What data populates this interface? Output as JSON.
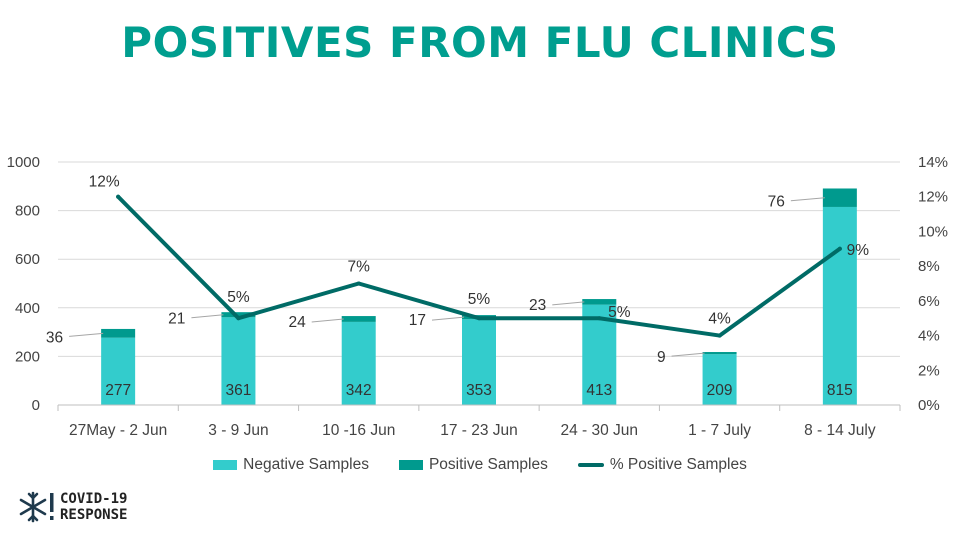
{
  "title": "POSITIVES FROM FLU CLINICS",
  "chart_data": {
    "type": "bar",
    "categories": [
      "27May - 2 Jun",
      "3 - 9 Jun",
      "10 -16 Jun",
      "17 - 23 Jun",
      "24 - 30 Jun",
      "1 - 7 July",
      "8 - 14 July"
    ],
    "series": [
      {
        "name": "Negative Samples",
        "type": "bar",
        "stack": "samples",
        "axis": "left",
        "color": "#33cccc",
        "values": [
          277,
          361,
          342,
          353,
          413,
          209,
          815
        ]
      },
      {
        "name": "Positive Samples",
        "type": "bar",
        "stack": "samples",
        "axis": "left",
        "color": "#009a8e",
        "values": [
          36,
          21,
          24,
          17,
          23,
          9,
          76
        ]
      },
      {
        "name": "% Positive Samples",
        "type": "line",
        "axis": "right",
        "color": "#006b66",
        "values": [
          12,
          5,
          7,
          5,
          5,
          4,
          9
        ],
        "labels": [
          "12%",
          "5%",
          "7%",
          "5%",
          "5%",
          "4%",
          "9%"
        ]
      }
    ],
    "ylim": [
      0,
      1000
    ],
    "yticks": [
      "0",
      "200",
      "400",
      "600",
      "800",
      "1000"
    ],
    "y2lim": [
      0,
      14
    ],
    "y2ticks": [
      "0%",
      "2%",
      "4%",
      "6%",
      "8%",
      "10%",
      "12%",
      "14%"
    ],
    "grid": true,
    "legend_position": "bottom"
  },
  "logo": {
    "line1": "COVID-19",
    "line2": "RESPONSE"
  }
}
